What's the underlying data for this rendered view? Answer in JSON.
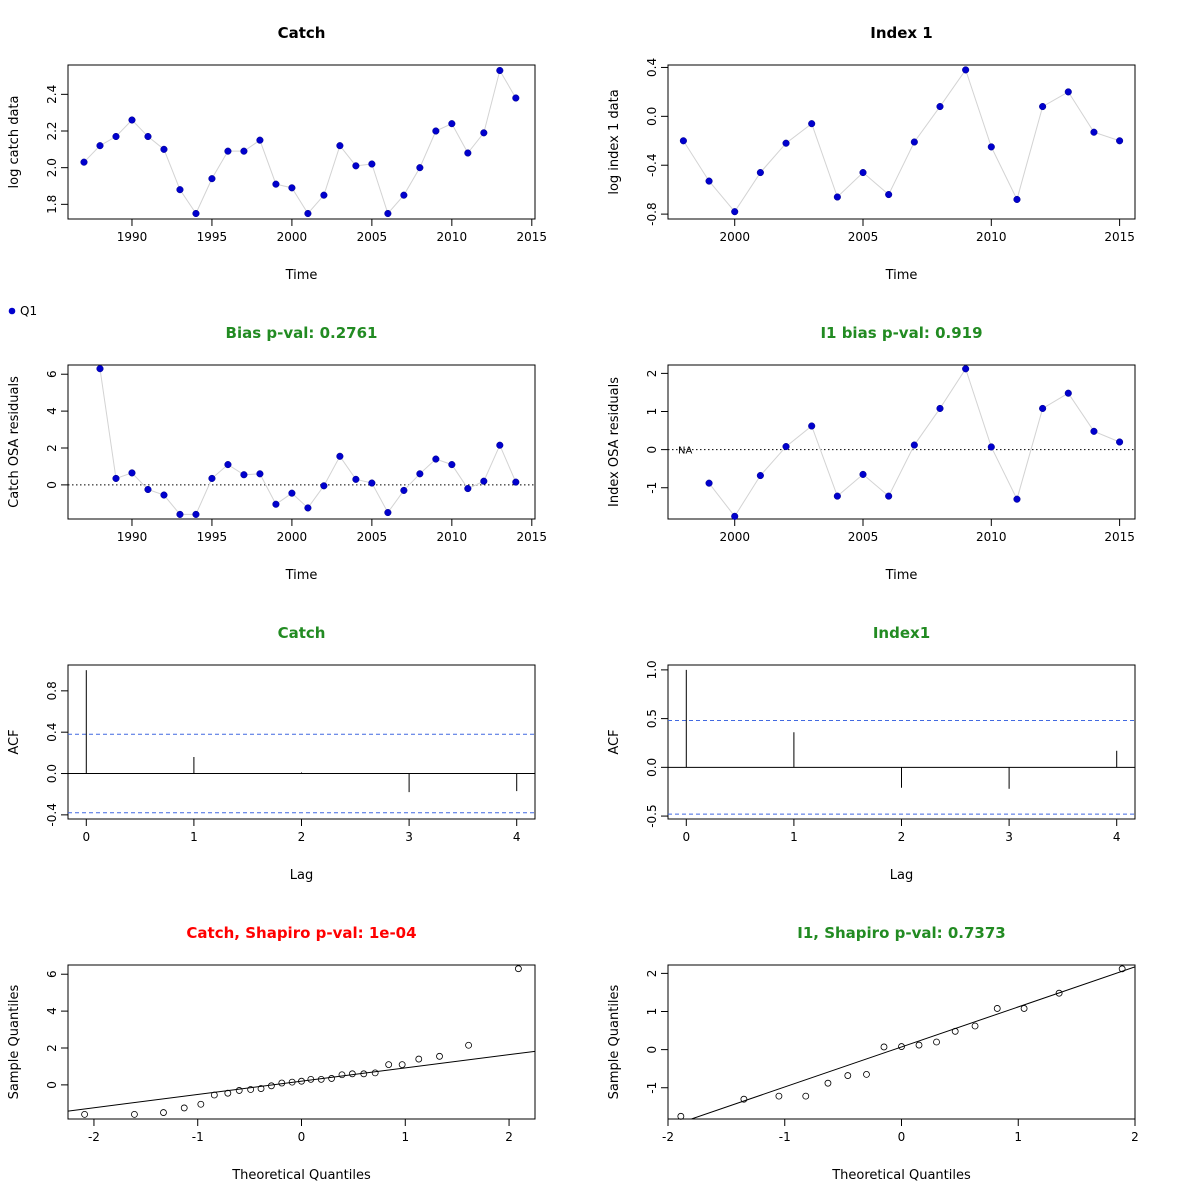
{
  "colors": {
    "point": "#0000CD",
    "connector": "#D3D3D3",
    "ref_line": "#000000",
    "ci_line": "#4169E1",
    "title_ok": "#228B22",
    "title_bad": "#FF0000"
  },
  "legend": {
    "label": "Q1",
    "position": "top-left"
  },
  "chart_data": [
    {
      "id": "p1",
      "type": "scatter",
      "title": "Catch",
      "title_color": "black",
      "xlabel": "Time",
      "ylabel": "log catch data",
      "xlim": [
        1986,
        2015.2
      ],
      "ylim": [
        1.72,
        2.56
      ],
      "xticks": [
        1990,
        1995,
        2000,
        2005,
        2010,
        2015
      ],
      "yticks": [
        1.8,
        2.0,
        2.2,
        2.4
      ],
      "ytick_labels": [
        "1.8",
        "2.0",
        "2.2",
        "2.4"
      ],
      "x": [
        1987,
        1988,
        1989,
        1990,
        1991,
        1992,
        1993,
        1994,
        1995,
        1996,
        1997,
        1998,
        1999,
        2000,
        2001,
        2002,
        2003,
        2004,
        2005,
        2006,
        2007,
        2008,
        2009,
        2010,
        2011,
        2012,
        2013,
        2014
      ],
      "y": [
        2.03,
        2.12,
        2.17,
        2.26,
        2.17,
        2.1,
        1.88,
        1.75,
        1.94,
        2.09,
        2.09,
        2.15,
        1.91,
        1.89,
        1.75,
        1.85,
        2.12,
        2.01,
        2.02,
        1.75,
        1.85,
        2.0,
        2.2,
        2.24,
        2.08,
        2.19,
        2.53,
        2.38
      ],
      "connect": true
    },
    {
      "id": "p2",
      "type": "scatter",
      "title": "Index 1",
      "title_color": "black",
      "xlabel": "Time",
      "ylabel": "log index 1 data",
      "xlim": [
        1997.4,
        2015.6
      ],
      "ylim": [
        -0.84,
        0.42
      ],
      "xticks": [
        2000,
        2005,
        2010,
        2015
      ],
      "yticks": [
        -0.8,
        -0.4,
        0.0,
        0.4
      ],
      "ytick_labels": [
        "-0.8",
        "-0.4",
        "0.0",
        "0.4"
      ],
      "x": [
        1998,
        1999,
        2000,
        2001,
        2002,
        2003,
        2004,
        2005,
        2006,
        2007,
        2008,
        2009,
        2010,
        2011,
        2012,
        2013,
        2014,
        2015
      ],
      "y": [
        -0.2,
        -0.53,
        -0.78,
        -0.46,
        -0.22,
        -0.06,
        -0.66,
        -0.46,
        -0.64,
        -0.21,
        0.08,
        0.38,
        -0.25,
        -0.68,
        0.08,
        0.2,
        -0.13,
        -0.2
      ],
      "connect": true
    },
    {
      "id": "p3",
      "type": "scatter",
      "title": "Bias p-val: 0.2761",
      "title_color": "green",
      "xlabel": "Time",
      "ylabel": "Catch OSA residuals",
      "xlim": [
        1986,
        2015.2
      ],
      "ylim": [
        -1.85,
        6.5
      ],
      "xticks": [
        1990,
        1995,
        2000,
        2005,
        2010,
        2015
      ],
      "yticks": [
        0,
        2,
        4,
        6
      ],
      "ytick_labels": [
        "0",
        "2",
        "4",
        "6"
      ],
      "x": [
        1988,
        1989,
        1990,
        1991,
        1992,
        1993,
        1994,
        1995,
        1996,
        1997,
        1998,
        1999,
        2000,
        2001,
        2002,
        2003,
        2004,
        2005,
        2006,
        2007,
        2008,
        2009,
        2010,
        2011,
        2012,
        2013,
        2014
      ],
      "y": [
        6.3,
        0.35,
        0.65,
        -0.25,
        -0.55,
        -1.6,
        -1.6,
        0.35,
        1.1,
        0.55,
        0.6,
        -1.05,
        -0.45,
        -1.25,
        -0.05,
        1.55,
        0.3,
        0.1,
        -1.5,
        -0.3,
        0.6,
        1.4,
        1.1,
        -0.2,
        0.2,
        2.15,
        0.15
      ],
      "connect": true,
      "hline": 0
    },
    {
      "id": "p4",
      "type": "scatter",
      "title": "I1 bias p-val: 0.919",
      "title_color": "green",
      "xlabel": "Time",
      "ylabel": "Index OSA residuals",
      "xlim": [
        1997.4,
        2015.6
      ],
      "ylim": [
        -1.82,
        2.22
      ],
      "xticks": [
        2000,
        2005,
        2010,
        2015
      ],
      "yticks": [
        -1,
        0,
        1,
        2
      ],
      "ytick_labels": [
        "-1",
        "0",
        "1",
        "2"
      ],
      "x": [
        1999,
        2000,
        2001,
        2002,
        2003,
        2004,
        2005,
        2006,
        2007,
        2008,
        2009,
        2010,
        2011,
        2012,
        2013,
        2014,
        2015
      ],
      "y": [
        -0.88,
        -1.75,
        -0.68,
        0.08,
        0.62,
        -1.22,
        -0.65,
        -1.22,
        0.12,
        1.08,
        2.12,
        0.07,
        -1.3,
        1.08,
        1.48,
        0.48,
        0.2
      ],
      "connect": true,
      "hline": 0,
      "annotation": "NA"
    },
    {
      "id": "p5",
      "type": "bar",
      "title": "Catch",
      "title_color": "green",
      "xlabel": "Lag",
      "ylabel": "ACF",
      "xlim": [
        -0.17,
        4.17
      ],
      "ylim": [
        -0.44,
        1.05
      ],
      "xticks": [
        0,
        1,
        2,
        3,
        4
      ],
      "yticks": [
        -0.4,
        0.0,
        0.4,
        0.8
      ],
      "ytick_labels": [
        "-0.4",
        "0.0",
        "0.4",
        "0.8"
      ],
      "lags": [
        0,
        1,
        2,
        3,
        4
      ],
      "acf": [
        1.0,
        0.16,
        0.01,
        -0.18,
        -0.17
      ],
      "ci": 0.38,
      "hline": 0
    },
    {
      "id": "p6",
      "type": "bar",
      "title": "Index1",
      "title_color": "green",
      "xlabel": "Lag",
      "ylabel": "ACF",
      "xlim": [
        -0.17,
        4.17
      ],
      "ylim": [
        -0.53,
        1.05
      ],
      "xticks": [
        0,
        1,
        2,
        3,
        4
      ],
      "yticks": [
        -0.5,
        0.0,
        0.5,
        1.0
      ],
      "ytick_labels": [
        "-0.5",
        "0.0",
        "0.5",
        "1.0"
      ],
      "lags": [
        0,
        1,
        2,
        3,
        4
      ],
      "acf": [
        1.0,
        0.36,
        -0.21,
        -0.22,
        0.17
      ],
      "ci": 0.48,
      "hline": 0
    },
    {
      "id": "p7",
      "type": "scatter",
      "title": "Catch, Shapiro p-val: 1e-04",
      "title_color": "red",
      "xlabel": "Theoretical Quantiles",
      "ylabel": "Sample Quantiles",
      "xlim": [
        -2.25,
        2.25
      ],
      "ylim": [
        -1.85,
        6.5
      ],
      "xticks": [
        -2,
        -1,
        0,
        1,
        2
      ],
      "yticks": [
        0,
        2,
        4,
        6
      ],
      "ytick_labels": [
        "0",
        "2",
        "4",
        "6"
      ],
      "x": [
        -2.09,
        -1.61,
        -1.33,
        -1.13,
        -0.97,
        -0.84,
        -0.71,
        -0.6,
        -0.49,
        -0.39,
        -0.29,
        -0.19,
        -0.09,
        0.0,
        0.09,
        0.19,
        0.29,
        0.39,
        0.49,
        0.6,
        0.71,
        0.84,
        0.97,
        1.13,
        1.33,
        1.61,
        2.09
      ],
      "y": [
        -1.6,
        -1.6,
        -1.5,
        -1.25,
        -1.05,
        -0.55,
        -0.45,
        -0.3,
        -0.25,
        -0.2,
        -0.05,
        0.1,
        0.15,
        0.2,
        0.3,
        0.3,
        0.35,
        0.55,
        0.6,
        0.6,
        0.65,
        1.1,
        1.1,
        1.4,
        1.55,
        2.15,
        6.3
      ],
      "qqline": {
        "intercept": 0.2,
        "slope": 0.72
      },
      "hollow": true
    },
    {
      "id": "p8",
      "type": "scatter",
      "title": "I1, Shapiro p-val: 0.7373",
      "title_color": "green",
      "xlabel": "Theoretical Quantiles",
      "ylabel": "Sample Quantiles",
      "xlim": [
        -2.0,
        2.0
      ],
      "ylim": [
        -1.82,
        2.22
      ],
      "xticks": [
        -2,
        -1,
        0,
        1,
        2
      ],
      "yticks": [
        -1,
        0,
        1,
        2
      ],
      "ytick_labels": [
        "-1",
        "0",
        "1",
        "2"
      ],
      "x": [
        -1.89,
        -1.35,
        -1.05,
        -0.82,
        -0.63,
        -0.46,
        -0.3,
        -0.15,
        0.0,
        0.15,
        0.3,
        0.46,
        0.63,
        0.82,
        1.05,
        1.35,
        1.89
      ],
      "y": [
        -1.75,
        -1.3,
        -1.22,
        -1.22,
        -0.88,
        -0.68,
        -0.65,
        0.07,
        0.08,
        0.12,
        0.2,
        0.48,
        0.62,
        1.08,
        1.08,
        1.48,
        2.12
      ],
      "qqline": {
        "intercept": 0.07,
        "slope": 1.05
      },
      "hollow": true
    }
  ]
}
